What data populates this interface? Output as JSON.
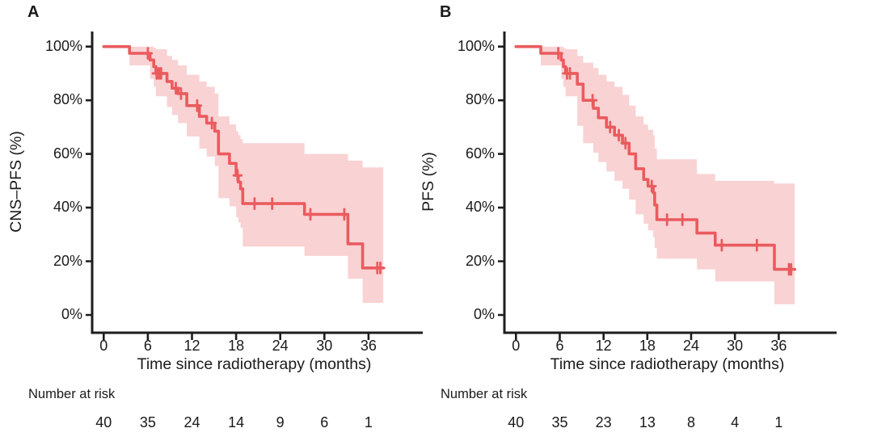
{
  "figure": {
    "panels": [
      {
        "label": "A",
        "y_axis_label": "CNS–PFS (%)",
        "x_axis_label": "Time since radiotherapy (months)",
        "number_at_risk_label": "Number at risk"
      },
      {
        "label": "B",
        "y_axis_label": "PFS (%)",
        "x_axis_label": "Time since radiotherapy (months)",
        "number_at_risk_label": "Number at risk"
      }
    ]
  },
  "colors": {
    "line": "#ea5b5e",
    "band": "#f9d2d3",
    "axis": "#1d1d1f",
    "text": "#1a1a1a"
  },
  "chart_data": [
    {
      "type": "line",
      "subtype": "kaplan-meier-step",
      "title": "A",
      "xlabel": "Time since radiotherapy (months)",
      "ylabel": "CNS–PFS (%)",
      "xlim": [
        0,
        43
      ],
      "ylim": [
        0,
        100
      ],
      "x_ticks": [
        0,
        6,
        12,
        18,
        24,
        30,
        36
      ],
      "y_ticks": [
        100,
        80,
        60,
        40,
        20,
        0
      ],
      "y_tick_labels": [
        "100%",
        "80%",
        "60%",
        "40%",
        "20%",
        "0%"
      ],
      "grid": false,
      "legend": "none",
      "series": [
        {
          "name": "CNS-PFS",
          "steps": [
            [
              0,
              100
            ],
            [
              3.5,
              97.5
            ],
            [
              6.3,
              95
            ],
            [
              6.8,
              92.5
            ],
            [
              7.1,
              90
            ],
            [
              8.6,
              87
            ],
            [
              9.3,
              84.5
            ],
            [
              10.1,
              82.5
            ],
            [
              11.3,
              78
            ],
            [
              13.0,
              74
            ],
            [
              14.0,
              71.5
            ],
            [
              15.1,
              68.5
            ],
            [
              15.6,
              60
            ],
            [
              17.1,
              56.5
            ],
            [
              18.0,
              52
            ],
            [
              18.3,
              49.5
            ],
            [
              18.6,
              47
            ],
            [
              18.9,
              41.5
            ],
            [
              27.3,
              37.5
            ],
            [
              33.2,
              26.5
            ],
            [
              35.2,
              17.5
            ]
          ],
          "end_time": 38.0,
          "censor_marks": [
            [
              6.0,
              97.5
            ],
            [
              7.2,
              90
            ],
            [
              7.5,
              90
            ],
            [
              7.8,
              90
            ],
            [
              9.8,
              84.5
            ],
            [
              10.5,
              82.5
            ],
            [
              12.7,
              78
            ],
            [
              14.7,
              71.5
            ],
            [
              18.2,
              52
            ],
            [
              20.5,
              41.5
            ],
            [
              22.9,
              41.5
            ],
            [
              28.1,
              37.5
            ],
            [
              32.7,
              37.5
            ],
            [
              37.2,
              17.5
            ],
            [
              37.6,
              17.5
            ]
          ],
          "ci_band": [
            [
              3.5,
              93,
              100
            ],
            [
              6.3,
              88,
              100
            ],
            [
              6.8,
              85,
              99.5
            ],
            [
              7.1,
              81.5,
              99
            ],
            [
              8.6,
              77.5,
              96.5
            ],
            [
              9.3,
              74.5,
              95
            ],
            [
              10.1,
              71.5,
              93
            ],
            [
              11.3,
              66.5,
              89.5
            ],
            [
              13.0,
              62,
              87
            ],
            [
              14.0,
              59,
              85
            ],
            [
              15.1,
              55.5,
              82.5
            ],
            [
              15.6,
              43.5,
              74
            ],
            [
              17.1,
              40.5,
              71
            ],
            [
              18.0,
              36.5,
              68.5
            ],
            [
              18.3,
              34.5,
              67
            ],
            [
              18.6,
              32.5,
              65.5
            ],
            [
              18.9,
              25.5,
              64
            ],
            [
              27.3,
              22,
              60
            ],
            [
              33.2,
              13.5,
              57.5
            ],
            [
              35.2,
              4.5,
              55
            ]
          ]
        }
      ],
      "number_at_risk": {
        "times": [
          0,
          6,
          12,
          18,
          24,
          30,
          36
        ],
        "counts": [
          40,
          35,
          24,
          14,
          9,
          6,
          1
        ]
      }
    },
    {
      "type": "line",
      "subtype": "kaplan-meier-step",
      "title": "B",
      "xlabel": "Time since radiotherapy (months)",
      "ylabel": "PFS (%)",
      "xlim": [
        0,
        43
      ],
      "ylim": [
        0,
        100
      ],
      "x_ticks": [
        0,
        6,
        12,
        18,
        24,
        30,
        36
      ],
      "y_ticks": [
        100,
        80,
        60,
        40,
        20,
        0
      ],
      "y_tick_labels": [
        "100%",
        "80%",
        "60%",
        "40%",
        "20%",
        "0%"
      ],
      "grid": false,
      "legend": "none",
      "series": [
        {
          "name": "PFS",
          "steps": [
            [
              0,
              100
            ],
            [
              3.4,
              97.5
            ],
            [
              6.2,
              95
            ],
            [
              6.5,
              92.5
            ],
            [
              6.8,
              90
            ],
            [
              8.4,
              86
            ],
            [
              9.2,
              80
            ],
            [
              10.6,
              77
            ],
            [
              11.3,
              73.5
            ],
            [
              12.4,
              70
            ],
            [
              13.5,
              67
            ],
            [
              14.6,
              64
            ],
            [
              15.5,
              60
            ],
            [
              16.4,
              54.5
            ],
            [
              17.5,
              50.5
            ],
            [
              18.1,
              48
            ],
            [
              18.8,
              45.5
            ],
            [
              19.0,
              41
            ],
            [
              19.3,
              35.5
            ],
            [
              24.8,
              30.5
            ],
            [
              27.3,
              26
            ],
            [
              35.4,
              17
            ]
          ],
          "end_time": 38.2,
          "censor_marks": [
            [
              5.8,
              97.5
            ],
            [
              7.0,
              90
            ],
            [
              7.4,
              90
            ],
            [
              10.5,
              80
            ],
            [
              12.9,
              70
            ],
            [
              14.1,
              67
            ],
            [
              15.0,
              64
            ],
            [
              18.6,
              48
            ],
            [
              20.7,
              35.5
            ],
            [
              22.8,
              35.5
            ],
            [
              28.2,
              26
            ],
            [
              33.0,
              26
            ],
            [
              37.4,
              17
            ],
            [
              37.7,
              17
            ]
          ],
          "ci_band": [
            [
              3.4,
              93,
              100
            ],
            [
              6.2,
              88,
              100
            ],
            [
              6.5,
              85,
              99.5
            ],
            [
              6.8,
              81.5,
              99
            ],
            [
              8.4,
              70.5,
              96.5
            ],
            [
              9.2,
              64,
              94
            ],
            [
              10.6,
              60.5,
              92
            ],
            [
              11.3,
              57,
              89.5
            ],
            [
              12.4,
              53.5,
              87
            ],
            [
              13.5,
              50,
              85
            ],
            [
              14.6,
              47,
              82
            ],
            [
              15.5,
              43,
              78
            ],
            [
              16.4,
              37.5,
              74
            ],
            [
              17.5,
              34,
              71
            ],
            [
              18.1,
              31.5,
              69
            ],
            [
              18.8,
              29,
              67
            ],
            [
              19.0,
              25,
              62
            ],
            [
              19.3,
              21,
              58
            ],
            [
              24.8,
              17,
              52.5
            ],
            [
              27.3,
              12.5,
              50
            ],
            [
              35.4,
              4,
              49
            ]
          ]
        }
      ],
      "number_at_risk": {
        "times": [
          0,
          6,
          12,
          18,
          24,
          30,
          36
        ],
        "counts": [
          40,
          35,
          23,
          13,
          8,
          4,
          1
        ]
      }
    }
  ]
}
